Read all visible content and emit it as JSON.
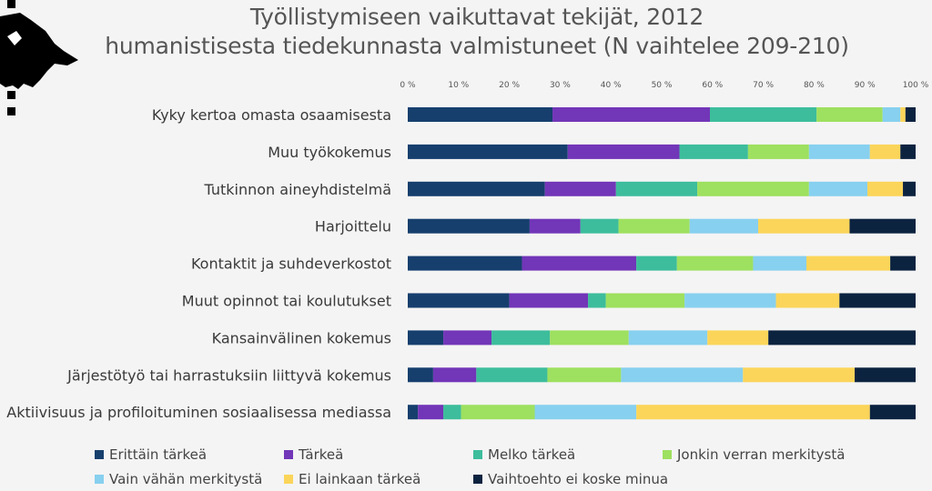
{
  "title_line1": "Työllistymiseen vaikuttavat tekijät, 2012",
  "title_line2": "humanistisesta tiedekunnasta valmistuneet (N vaihtelee 209-210)",
  "logo_icon": "university-of-helsinki-logo-icon",
  "chart_data": {
    "type": "bar",
    "orientation": "horizontal",
    "stacked": true,
    "percent_stacked": true,
    "title": "Työllistymiseen vaikuttavat tekijät, 2012 humanistisesta tiedekunnasta valmistuneet (N vaihtelee 209-210)",
    "xlim": [
      0,
      100
    ],
    "x_ticks": [
      "0 %",
      "10 %",
      "20 %",
      "30 %",
      "40 %",
      "50 %",
      "60 %",
      "70 %",
      "80 %",
      "90 %",
      "100 %"
    ],
    "x_tick_values": [
      0,
      10,
      20,
      30,
      40,
      50,
      60,
      70,
      80,
      90,
      100
    ],
    "grid": false,
    "legend_position": "bottom",
    "categories": [
      "Kyky kertoa omasta osaamisesta",
      "Muu työkokemus",
      "Tutkinnon aineyhdistelmä",
      "Harjoittelu",
      "Kontaktit ja suhdeverkostot",
      "Muut opinnot tai koulutukset",
      "Kansainvälinen kokemus",
      "Järjestötyö tai harrastuksiin liittyvä kokemus",
      "Aktiivisuus ja profiloituminen sosiaalisessa mediassa"
    ],
    "series": [
      {
        "name": "Erittäin tärkeä",
        "color": "#163f6e",
        "values": [
          28.5,
          31.5,
          27.0,
          24.0,
          22.5,
          20.0,
          7.0,
          5.0,
          2.0
        ]
      },
      {
        "name": "Tärkeä",
        "color": "#7236b8",
        "values": [
          31.0,
          22.0,
          14.0,
          10.0,
          22.5,
          15.5,
          9.5,
          8.5,
          5.0
        ]
      },
      {
        "name": "Melko tärkeä",
        "color": "#3dbd9c",
        "values": [
          21.0,
          13.5,
          16.0,
          7.5,
          8.0,
          3.5,
          11.5,
          14.0,
          3.5
        ]
      },
      {
        "name": "Jonkin verran merkitystä",
        "color": "#9ee05f",
        "values": [
          13.0,
          12.0,
          22.0,
          14.0,
          15.0,
          15.5,
          15.5,
          14.5,
          14.5
        ]
      },
      {
        "name": "Vain vähän merkitystä",
        "color": "#87d0ef",
        "values": [
          3.5,
          12.0,
          11.5,
          13.5,
          10.5,
          18.0,
          15.5,
          24.0,
          20.0
        ]
      },
      {
        "name": "Ei lainkaan tärkeä",
        "color": "#fbd55a",
        "values": [
          1.0,
          6.0,
          7.0,
          18.0,
          16.5,
          12.5,
          12.0,
          22.0,
          46.0
        ]
      },
      {
        "name": "Vaihtoehto ei koske minua",
        "color": "#0c2340",
        "values": [
          2.0,
          3.0,
          2.5,
          13.0,
          5.0,
          15.0,
          29.0,
          12.0,
          9.0
        ]
      }
    ]
  }
}
